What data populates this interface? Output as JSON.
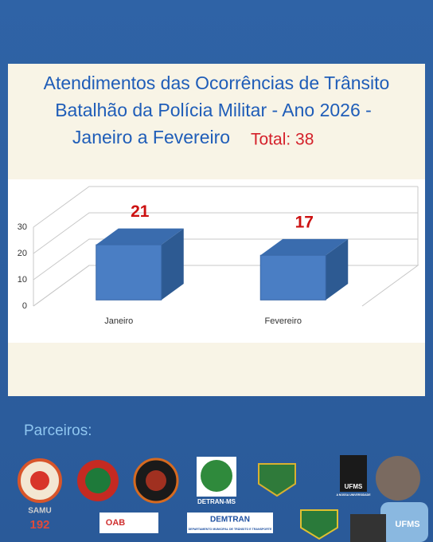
{
  "chart_data": {
    "type": "bar3d",
    "title": [
      "Atendimentos das Ocorrências de Trânsito",
      "Batalhão da Polícia Militar - Ano 2026 -",
      "Janeiro a Fevereiro"
    ],
    "total_label": "Total: 38",
    "categories": [
      "Janeiro",
      "Fevereiro"
    ],
    "values": [
      21,
      17
    ],
    "color": "#4a7ec4",
    "ylim": [
      0,
      30
    ],
    "yticks": [
      0,
      10,
      20,
      30
    ],
    "grid": true
  },
  "partners": {
    "heading": "Parceiros:",
    "labels": [
      "SAMU",
      "192",
      "DETRAN-MS",
      "UFMS",
      "A NOSSA UNIVERSIDADE",
      "OAB",
      "DEMTRAN",
      "DEPARTAMENTO MUNICIPAL DE TRÂNSITO E TRANSPORTE"
    ]
  }
}
